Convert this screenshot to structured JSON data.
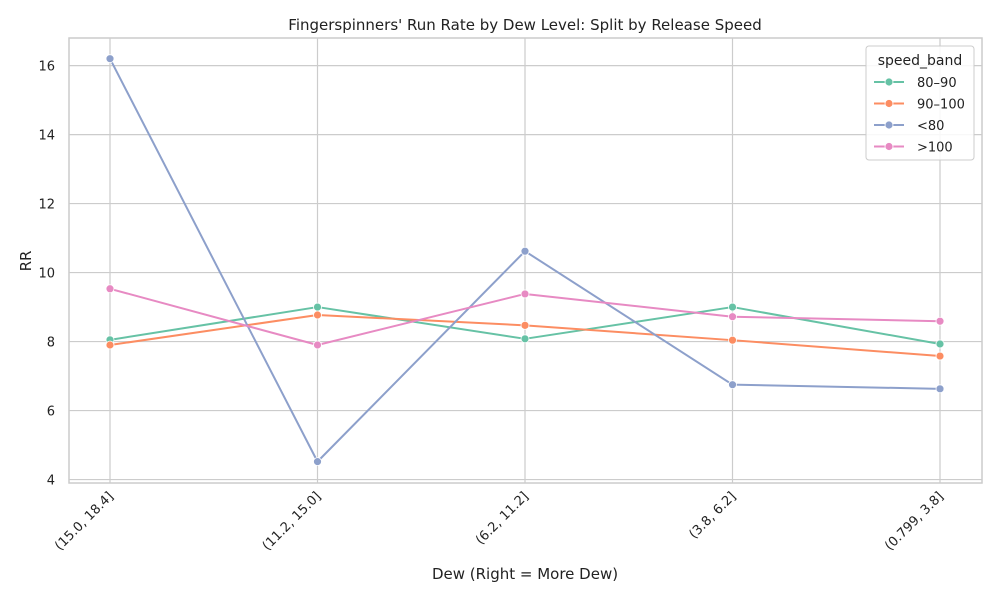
{
  "chart_data": {
    "type": "line",
    "title": "Fingerspinners' Run Rate by Dew Level: Split by Release Speed",
    "xlabel": "Dew (Right = More Dew)",
    "ylabel": "RR",
    "categories": [
      "(15.0, 18.4]",
      "(11.2, 15.0]",
      "(6.2, 11.2]",
      "(3.8, 6.2]",
      "(0.799, 3.8]"
    ],
    "ylim": [
      3.9,
      16.8
    ],
    "yticks": [
      4,
      6,
      8,
      10,
      12,
      14,
      16
    ],
    "grid": true,
    "legend": {
      "title": "speed_band",
      "placement": "top-right"
    },
    "series": [
      {
        "name": "80–90",
        "color": "#66c2a5",
        "values": [
          8.05,
          9.0,
          8.08,
          9.0,
          7.93
        ]
      },
      {
        "name": "90–100",
        "color": "#fc8d62",
        "values": [
          7.9,
          8.77,
          8.47,
          8.04,
          7.58
        ]
      },
      {
        "name": "<80",
        "color": "#8da0cb",
        "values": [
          16.2,
          4.52,
          10.62,
          6.75,
          6.63
        ]
      },
      {
        "name": ">100",
        "color": "#e78ac3",
        "values": [
          9.53,
          7.9,
          9.38,
          8.72,
          8.59
        ]
      }
    ]
  }
}
